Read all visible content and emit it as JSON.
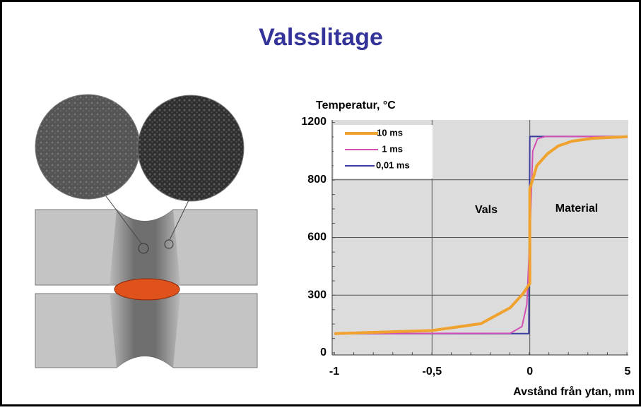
{
  "chart_data": {
    "type": "line",
    "title": "Valsslitage",
    "y_label": "Temperatur, °C",
    "x_label": "Avstånd från ytan, mm",
    "annotations": [
      "Vals",
      "Material"
    ],
    "xlim": [
      -1,
      5
    ],
    "xticks": [
      -1,
      {
        "value": -0.5,
        "label": "-0,5"
      },
      0,
      5
    ],
    "ylim": [
      0,
      1200
    ],
    "yticks": [
      0,
      300,
      600,
      800,
      1200
    ],
    "grid": true,
    "legend": "upper left",
    "series": [
      {
        "name": "10 ms",
        "color": "#f0a22e",
        "x": [
          -1,
          -0.5,
          -0.25,
          -0.1,
          -0.035,
          0,
          0,
          0.36,
          0.9,
          1.45,
          2.17,
          3.26,
          5
        ],
        "values": [
          100,
          116,
          152,
          235,
          307,
          361,
          768,
          898,
          980,
          1034,
          1068,
          1088,
          1098
        ]
      },
      {
        "name": "1 ms",
        "color": "#d24fb4",
        "x": [
          -1,
          -0.1,
          -0.04,
          -0.015,
          0,
          0.15,
          0.4,
          0.8,
          5
        ],
        "values": [
          100,
          102,
          137,
          253,
          600,
          1000,
          1085,
          1100,
          1100
        ]
      },
      {
        "name": "0,01 ms",
        "color": "#3c3c9c",
        "x": [
          -1,
          -0.005,
          0,
          5
        ],
        "values": [
          100,
          100,
          1100,
          1100
        ]
      }
    ]
  }
}
